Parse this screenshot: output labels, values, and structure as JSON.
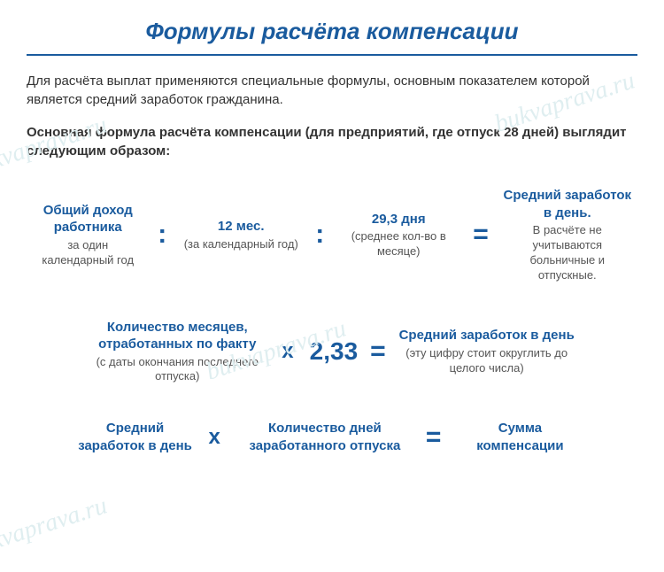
{
  "title": "Формулы расчёта компенсации",
  "intro": "Для расчёта выплат применяются специальные формулы, основным  показателем которой является средний заработок гражданина.",
  "subtitle": "Основная формула расчёта компенсации (для предприятий, где отпуск 28 дней) выглядит следующим образом:",
  "watermark": "bukvaprava.ru",
  "formula1": {
    "term1_main": "Общий доход работника",
    "term1_sub": "за один календарный год",
    "op1": ":",
    "term2_main": "12 мес.",
    "term2_sub": "(за календарный год)",
    "op2": ":",
    "term3_main": "29,3 дня",
    "term3_sub": "(среднее кол-во в месяце)",
    "op3": "=",
    "term4_main": "Средний заработок в день.",
    "term4_sub": "В расчёте не учитываются больничные и отпускные."
  },
  "formula2": {
    "term1_main": "Количество месяцев, отработанных по факту",
    "term1_sub": "(с даты окончания последнего отпуска)",
    "op1": "х",
    "term2_main": "2,33",
    "op2": "=",
    "term3_main": "Средний заработок в день",
    "term3_sub": "(эту цифру стоит округлить до целого числа)"
  },
  "formula3": {
    "term1_main": "Средний заработок в день",
    "op1": "х",
    "term2_main": "Количество дней заработанного отпуска",
    "op2": "=",
    "term3_main": "Сумма компенсации"
  },
  "colors": {
    "primary": "#1a5b9e",
    "text": "#333333",
    "subtext": "#555555",
    "watermark": "#dfeef0",
    "background": "#ffffff"
  }
}
